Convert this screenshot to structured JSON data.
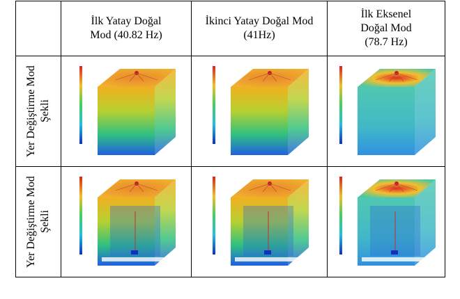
{
  "table": {
    "header": [
      "İlk Yatay Doğal Mod (40.82 Hz)",
      "İkinci Yatay Doğal Mod (41Hz)",
      "İlk Eksenel Doğal Mod (78.7 Hz)"
    ],
    "rows": [
      [
        "Yer Değiştirme Mod Şekli"
      ],
      [
        "Yer Değiştirme Mod Şekli"
      ]
    ]
  }
}
